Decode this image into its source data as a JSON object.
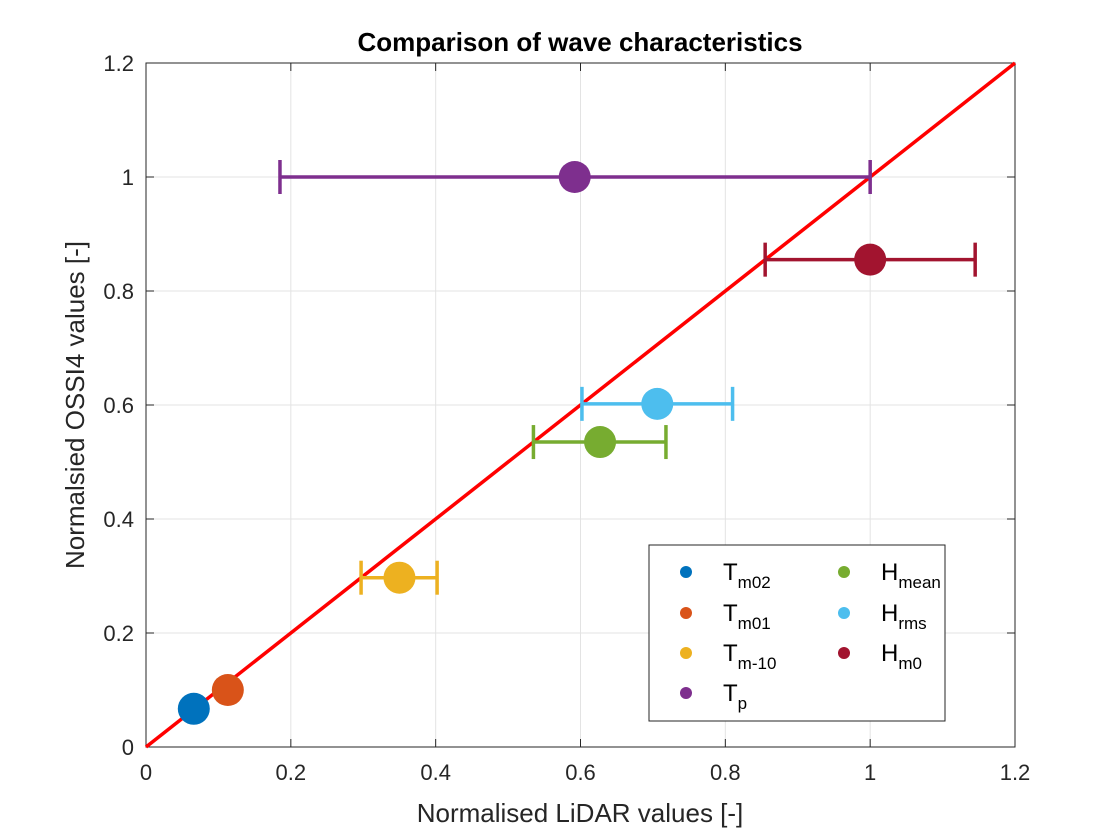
{
  "chart_data": {
    "type": "scatter",
    "title": "Comparison of wave characteristics",
    "xlabel": "Normalised LiDAR values [-]",
    "ylabel": "Normalsied OSSI4 values [-]",
    "xlim": [
      0,
      1.2
    ],
    "ylim": [
      0,
      1.2
    ],
    "xticks": [
      "0",
      "0.2",
      "0.4",
      "0.6",
      "0.8",
      "1",
      "1.2"
    ],
    "yticks": [
      "0",
      "0.2",
      "0.4",
      "0.6",
      "0.8",
      "1",
      "1.2"
    ],
    "grid": true,
    "legend_placement": "bottom-right",
    "reference_line": {
      "x": [
        0,
        1.2
      ],
      "y": [
        0,
        1.2
      ],
      "color": "#ff0000"
    },
    "series": [
      {
        "base": "T",
        "sub": "m02",
        "color": "#0072bd",
        "x": 0.066,
        "y": 0.067,
        "xerr": [
          0.066,
          0.066
        ]
      },
      {
        "base": "T",
        "sub": "m01",
        "color": "#d95319",
        "x": 0.113,
        "y": 0.1,
        "xerr": [
          0.113,
          0.113
        ]
      },
      {
        "base": "T",
        "sub": "m-10",
        "color": "#edb120",
        "x": 0.35,
        "y": 0.297,
        "xerr": [
          0.297,
          0.402
        ]
      },
      {
        "base": "T",
        "sub": "p",
        "color": "#7e2f8e",
        "x": 0.592,
        "y": 1.0,
        "xerr": [
          0.185,
          1.0
        ]
      },
      {
        "base": "H",
        "sub": "mean",
        "color": "#77ac30",
        "x": 0.627,
        "y": 0.535,
        "xerr": [
          0.535,
          0.718
        ]
      },
      {
        "base": "H",
        "sub": "rms",
        "color": "#4dbeee",
        "x": 0.706,
        "y": 0.602,
        "xerr": [
          0.602,
          0.81
        ]
      },
      {
        "base": "H",
        "sub": "m0",
        "color": "#a2142f",
        "x": 1.0,
        "y": 0.855,
        "xerr": [
          0.855,
          1.145
        ]
      }
    ]
  }
}
